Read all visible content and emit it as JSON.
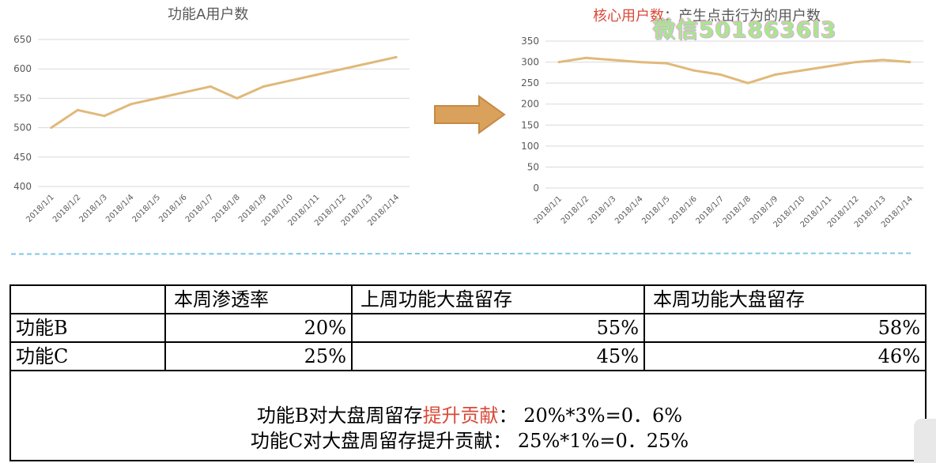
{
  "chart_data": [
    {
      "type": "line",
      "title": "功能A用户数",
      "categories": [
        "2018/1/1",
        "2018/1/2",
        "2018/1/3",
        "2018/1/4",
        "2018/1/5",
        "2018/1/6",
        "2018/1/7",
        "2018/1/8",
        "2018/1/9",
        "2018/1/10",
        "2018/1/11",
        "2018/1/12",
        "2018/1/13",
        "2018/1/14"
      ],
      "values": [
        500,
        530,
        520,
        540,
        550,
        560,
        570,
        550,
        570,
        580,
        590,
        600,
        610,
        620
      ],
      "ylim": [
        400,
        650
      ],
      "yticks": [
        400,
        450,
        500,
        550,
        600,
        650
      ],
      "grid": true,
      "color": "#e0b97a"
    },
    {
      "type": "line",
      "title": "核心用户数：产生点击行为的用户数",
      "title_parts": {
        "highlight": "核心用户数",
        "rest": "：产生点击行为的用户数"
      },
      "categories": [
        "2018/1/1",
        "2018/1/2",
        "2018/1/3",
        "2018/1/4",
        "2018/1/5",
        "2018/1/6",
        "2018/1/7",
        "2018/1/8",
        "2018/1/9",
        "2018/1/10",
        "2018/1/11",
        "2018/1/12",
        "2018/1/13",
        "2018/1/14"
      ],
      "values": [
        300,
        310,
        305,
        300,
        297,
        280,
        270,
        250,
        270,
        280,
        290,
        300,
        305,
        300
      ],
      "ylim": [
        0,
        350
      ],
      "yticks": [
        0,
        50,
        100,
        150,
        200,
        250,
        300,
        350
      ],
      "grid": true,
      "color": "#e0b97a"
    }
  ],
  "watermark": "微信5018636l3",
  "table": {
    "headers": [
      "",
      "本周渗透率",
      "上周功能大盘留存",
      "本周功能大盘留存"
    ],
    "rows": [
      {
        "name": "功能B",
        "values": [
          "20%",
          "55%",
          "58%"
        ]
      },
      {
        "name": "功能C",
        "values": [
          "25%",
          "45%",
          "46%"
        ]
      }
    ]
  },
  "summary": {
    "line1": {
      "prefix": "功能B对大盘周留存",
      "highlight": "提升贡献",
      "suffix": "：  20%*3%=0．6%"
    },
    "line2": {
      "text": "功能C对大盘周留存提升贡献：  25%*1%=0．25%"
    }
  },
  "colors": {
    "line": "#e0b97a",
    "highlight": "#d94a38",
    "arrow": "#d9a15c",
    "divider": "#7fc7e6"
  }
}
